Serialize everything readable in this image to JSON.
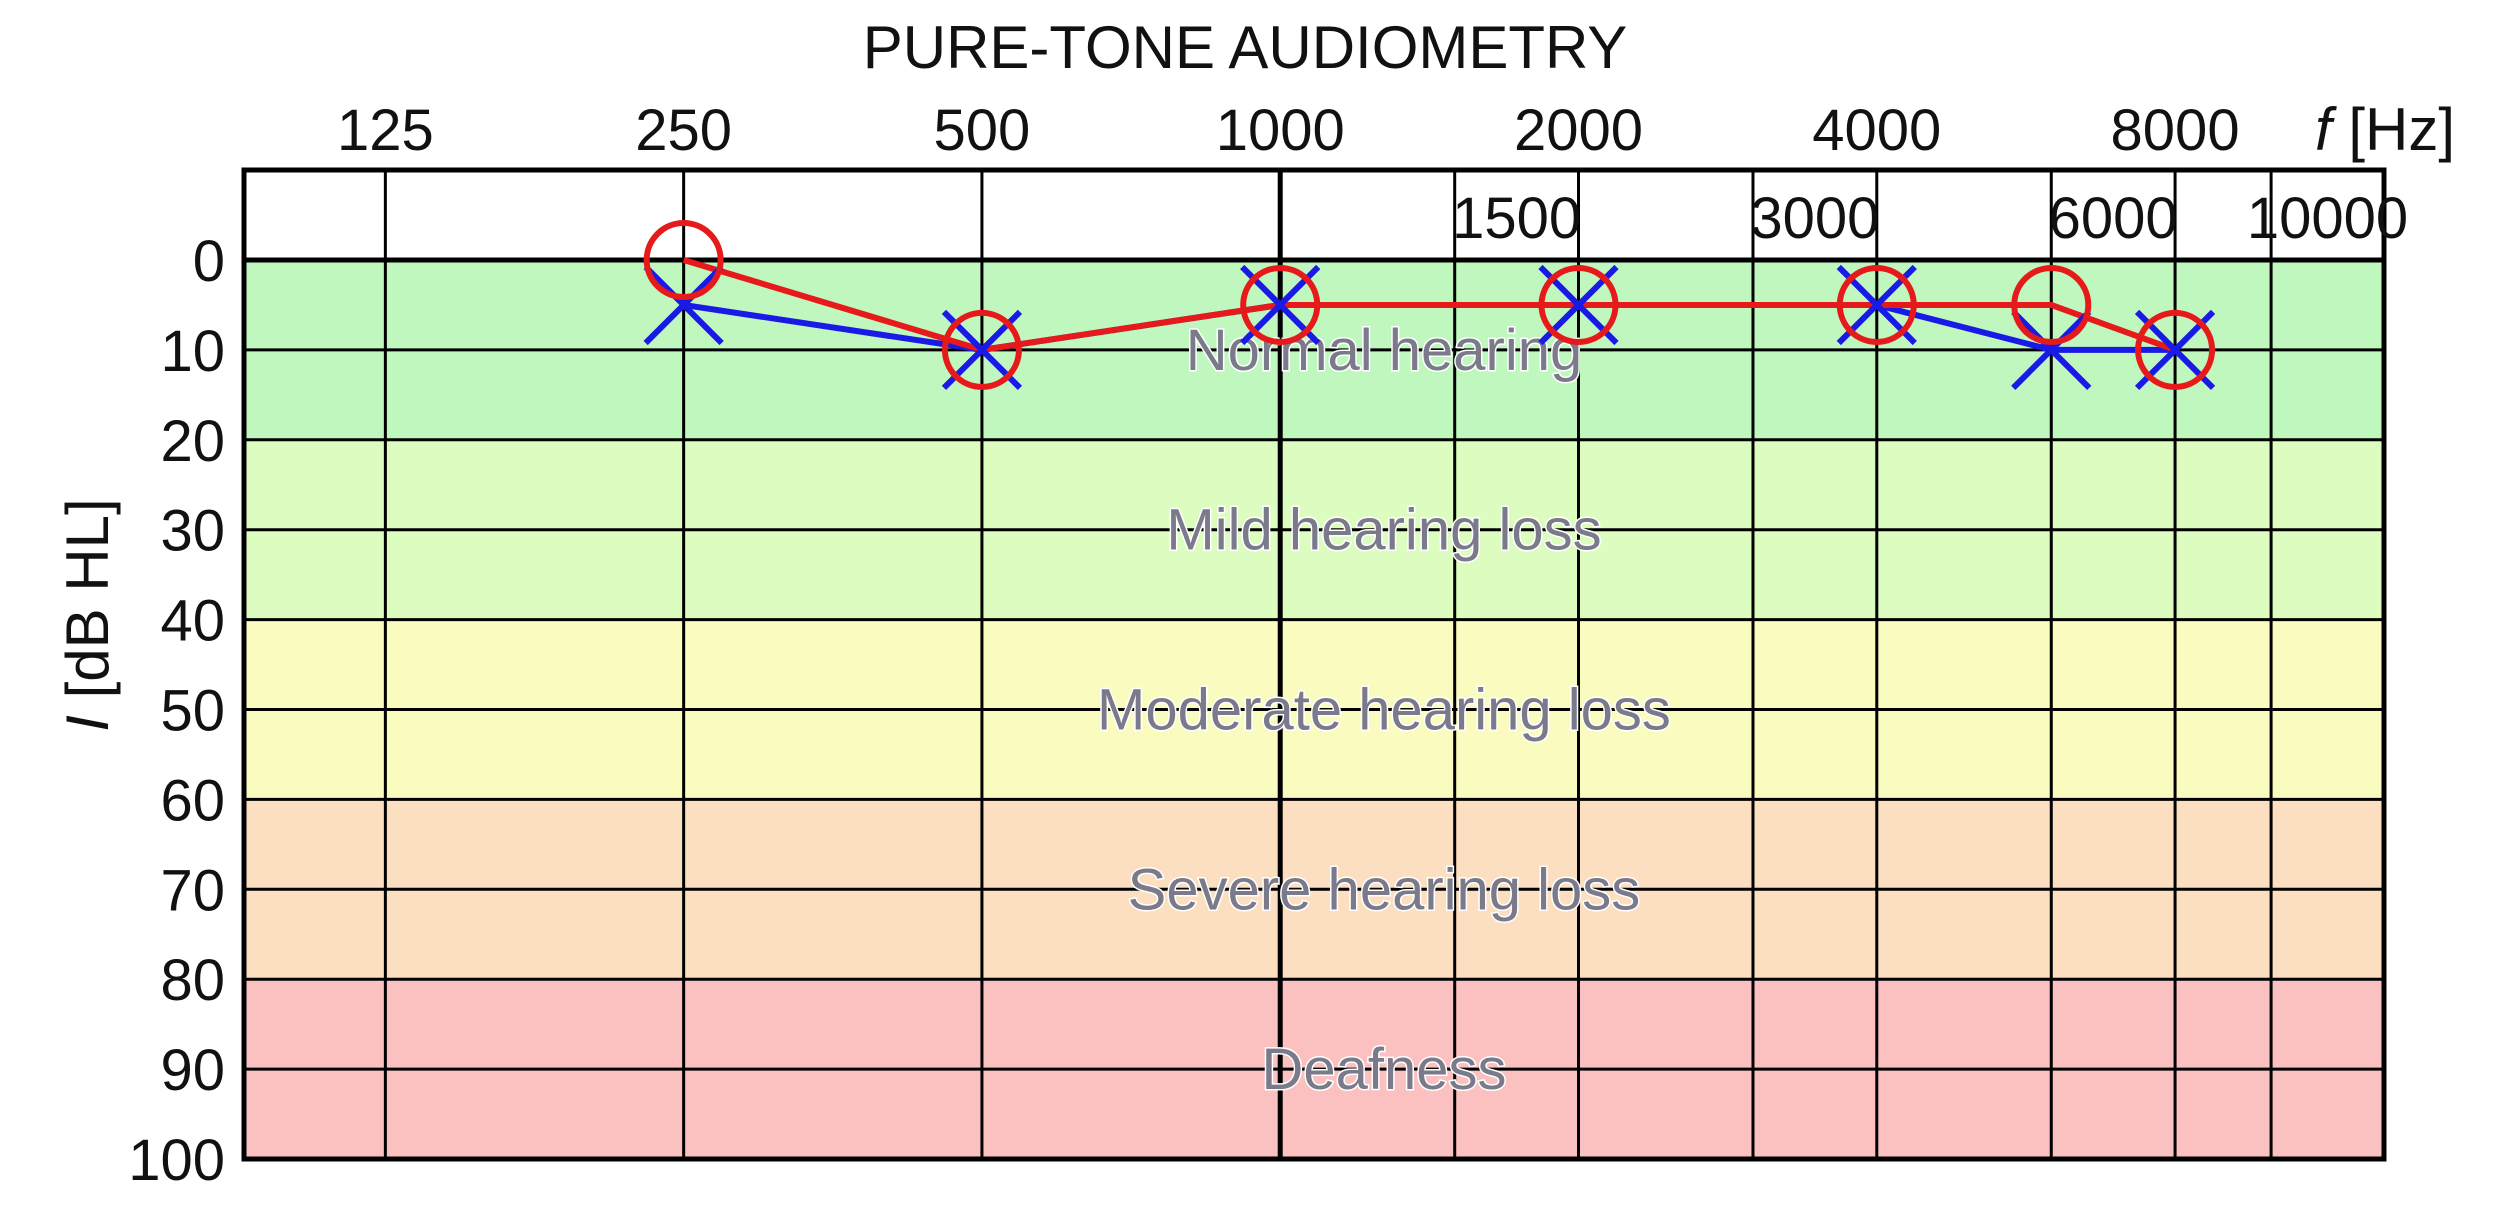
{
  "chart_data": {
    "type": "line",
    "title": "PURE-TONE AUDIOMETRY",
    "xlabel": "f [Hz]",
    "xlabel_var": "f",
    "xlabel_unit": "[Hz]",
    "ylabel": "I [dB HL]",
    "ylabel_var": "I",
    "ylabel_unit": "[dB HL]",
    "x_scale": "log",
    "x_top_ticks": [
      125,
      250,
      500,
      1000,
      2000,
      4000,
      8000
    ],
    "x_inner_ticks": [
      1500,
      3000,
      6000,
      10000
    ],
    "x_grid": [
      125,
      250,
      500,
      1000,
      1500,
      2000,
      3000,
      4000,
      6000,
      8000,
      10000
    ],
    "xlim": [
      90,
      13000
    ],
    "ylim": [
      0,
      100
    ],
    "y_inverted": true,
    "y_ticks": [
      0,
      10,
      20,
      30,
      40,
      50,
      60,
      70,
      80,
      90,
      100
    ],
    "grid": true,
    "bands": [
      {
        "label": "Normal hearing",
        "from": 0,
        "to": 20,
        "color": "#bff7bf"
      },
      {
        "label": "Mild hearing loss",
        "from": 20,
        "to": 40,
        "color": "#dcfcc0"
      },
      {
        "label": "Moderate hearing loss",
        "from": 40,
        "to": 60,
        "color": "#fafcbf"
      },
      {
        "label": "Severe hearing loss",
        "from": 60,
        "to": 80,
        "color": "#fbdfc0"
      },
      {
        "label": "Deafness",
        "from": 80,
        "to": 100,
        "color": "#fbc0c0"
      }
    ],
    "series": [
      {
        "marker": "x",
        "color": "#1a1ae6",
        "x": [
          250,
          500,
          1000,
          2000,
          4000,
          6000,
          8000
        ],
        "y": [
          5,
          10,
          5,
          5,
          5,
          10,
          10
        ]
      },
      {
        "marker": "o",
        "color": "#e61a1a",
        "x": [
          250,
          500,
          1000,
          2000,
          4000,
          6000,
          8000
        ],
        "y": [
          0,
          10,
          5,
          5,
          5,
          5,
          10
        ]
      }
    ]
  }
}
